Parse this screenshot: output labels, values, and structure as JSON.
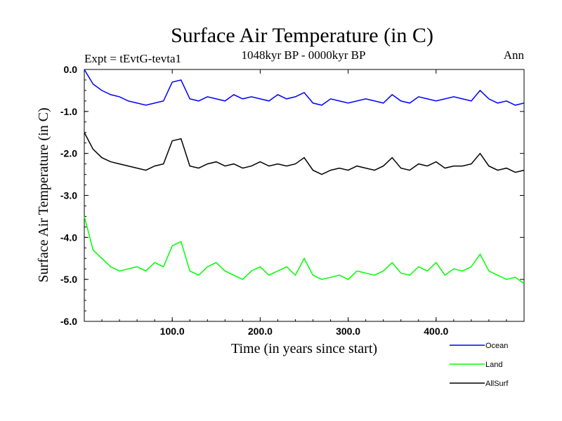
{
  "chart_data": {
    "type": "line",
    "title": "Surface Air Temperature (in C)",
    "subtitle": "1048kyr BP - 0000kyr BP",
    "experiment": "Expt = tEvtG-tevta1",
    "season": "Ann",
    "xlabel": "Time (in years since start)",
    "ylabel": "Surface Air Temperature (in C)",
    "xlim": [
      0,
      500
    ],
    "ylim": [
      -6.0,
      0.0
    ],
    "xticks": [
      100,
      200,
      300,
      400
    ],
    "xtick_labels": [
      "100.0",
      "200.0",
      "300.0",
      "400.0"
    ],
    "yticks": [
      0,
      -1,
      -2,
      -3,
      -4,
      -5,
      -6
    ],
    "ytick_labels": [
      "0.0",
      "-1.0",
      "-2.0",
      "-3.0",
      "-4.0",
      "-5.0",
      "-6.0"
    ],
    "x": [
      0,
      10,
      20,
      30,
      40,
      50,
      60,
      70,
      80,
      90,
      100,
      110,
      120,
      130,
      140,
      150,
      160,
      170,
      180,
      190,
      200,
      210,
      220,
      230,
      240,
      250,
      260,
      270,
      280,
      290,
      300,
      310,
      320,
      330,
      340,
      350,
      360,
      370,
      380,
      390,
      400,
      410,
      420,
      430,
      440,
      450,
      460,
      470,
      480,
      490,
      500
    ],
    "series": [
      {
        "name": "Ocean",
        "color": "#0000ff",
        "values": [
          0.0,
          -0.35,
          -0.5,
          -0.6,
          -0.65,
          -0.75,
          -0.8,
          -0.85,
          -0.8,
          -0.75,
          -0.3,
          -0.25,
          -0.7,
          -0.75,
          -0.65,
          -0.7,
          -0.75,
          -0.6,
          -0.7,
          -0.65,
          -0.7,
          -0.75,
          -0.6,
          -0.7,
          -0.65,
          -0.55,
          -0.8,
          -0.85,
          -0.7,
          -0.75,
          -0.8,
          -0.75,
          -0.7,
          -0.75,
          -0.8,
          -0.6,
          -0.75,
          -0.8,
          -0.65,
          -0.7,
          -0.75,
          -0.7,
          -0.65,
          -0.7,
          -0.75,
          -0.5,
          -0.7,
          -0.8,
          -0.75,
          -0.85,
          -0.8
        ]
      },
      {
        "name": "Land",
        "color": "#00ff00",
        "values": [
          -3.5,
          -4.3,
          -4.5,
          -4.7,
          -4.8,
          -4.75,
          -4.7,
          -4.8,
          -4.6,
          -4.7,
          -4.2,
          -4.1,
          -4.8,
          -4.9,
          -4.7,
          -4.6,
          -4.8,
          -4.9,
          -5.0,
          -4.8,
          -4.7,
          -4.9,
          -4.8,
          -4.7,
          -4.9,
          -4.5,
          -4.9,
          -5.0,
          -4.95,
          -4.9,
          -5.0,
          -4.8,
          -4.85,
          -4.9,
          -4.8,
          -4.6,
          -4.85,
          -4.9,
          -4.7,
          -4.8,
          -4.6,
          -4.9,
          -4.75,
          -4.8,
          -4.7,
          -4.4,
          -4.8,
          -4.9,
          -5.0,
          -4.95,
          -5.1
        ]
      },
      {
        "name": "AllSurf",
        "color": "#000000",
        "values": [
          -1.5,
          -1.9,
          -2.1,
          -2.2,
          -2.25,
          -2.3,
          -2.35,
          -2.4,
          -2.3,
          -2.25,
          -1.7,
          -1.65,
          -2.3,
          -2.35,
          -2.25,
          -2.2,
          -2.3,
          -2.25,
          -2.35,
          -2.3,
          -2.2,
          -2.3,
          -2.25,
          -2.3,
          -2.25,
          -2.1,
          -2.4,
          -2.5,
          -2.4,
          -2.35,
          -2.4,
          -2.3,
          -2.35,
          -2.4,
          -2.3,
          -2.1,
          -2.35,
          -2.4,
          -2.25,
          -2.3,
          -2.2,
          -2.35,
          -2.3,
          -2.3,
          -2.25,
          -2.0,
          -2.3,
          -2.4,
          -2.35,
          -2.45,
          -2.4
        ]
      }
    ],
    "legend": "bottom-right"
  }
}
